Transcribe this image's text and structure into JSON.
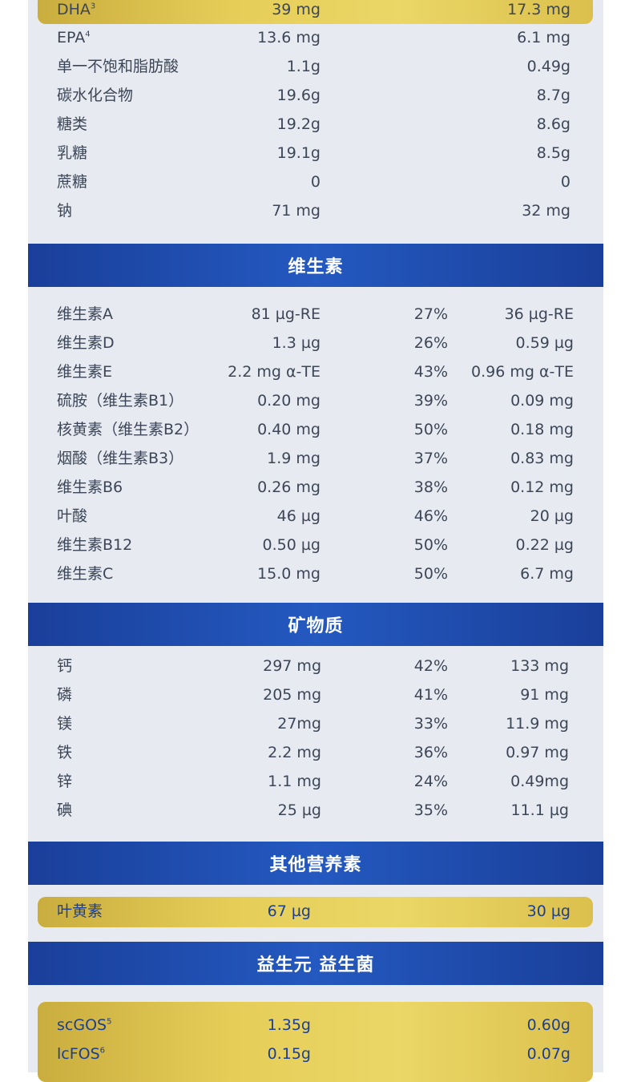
{
  "sections": {
    "vitamins": "维生素",
    "minerals": "矿物质",
    "other": "其他营养素",
    "probiotics": "益生元 益生菌"
  },
  "top_rows": [
    {
      "name": "DHA",
      "sup": "3",
      "a": "39 mg",
      "b": "17.3 mg"
    },
    {
      "name": "EPA",
      "sup": "4",
      "a": "13.6 mg",
      "b": "6.1 mg"
    },
    {
      "name": "单一不饱和脂肪酸",
      "sup": "",
      "a": "1.1g",
      "b": "0.49g"
    },
    {
      "name": "碳水化合物",
      "sup": "",
      "a": "19.6g",
      "b": "8.7g"
    },
    {
      "name": "糖类",
      "sup": "",
      "a": "19.2g",
      "b": "8.6g"
    },
    {
      "name": "乳糖",
      "sup": "",
      "a": "19.1g",
      "b": "8.5g"
    },
    {
      "name": "蔗糖",
      "sup": "",
      "a": "0",
      "b": "0"
    },
    {
      "name": "钠",
      "sup": "",
      "a": "71 mg",
      "b": "32 mg"
    }
  ],
  "vitamins": [
    {
      "name": "维生素A",
      "a": "81 µg-RE",
      "p": "27%",
      "b": "36 µg-RE"
    },
    {
      "name": "维生素D",
      "a": "1.3 µg",
      "p": "26%",
      "b": "0.59 µg"
    },
    {
      "name": "维生素E",
      "a": "2.2 mg α-TE",
      "p": "43%",
      "b": "0.96 mg α-TE"
    },
    {
      "name": "硫胺（维生素B1）",
      "a": "0.20 mg",
      "p": "39%",
      "b": "0.09 mg"
    },
    {
      "name": "核黄素（维生素B2）",
      "a": "0.40 mg",
      "p": "50%",
      "b": "0.18 mg"
    },
    {
      "name": "烟酸（维生素B3）",
      "a": "1.9 mg",
      "p": "37%",
      "b": "0.83 mg"
    },
    {
      "name": "维生素B6",
      "a": "0.26 mg",
      "p": "38%",
      "b": "0.12 mg"
    },
    {
      "name": "叶酸",
      "a": "46 µg",
      "p": "46%",
      "b": "20 µg"
    },
    {
      "name": "维生素B12",
      "a": "0.50 µg",
      "p": "50%",
      "b": "0.22 µg"
    },
    {
      "name": "维生素C",
      "a": "15.0 mg",
      "p": "50%",
      "b": "6.7 mg"
    }
  ],
  "minerals": [
    {
      "name": "钙",
      "a": "297 mg",
      "p": "42%",
      "b": "133 mg"
    },
    {
      "name": "磷",
      "a": "205 mg",
      "p": "41%",
      "b": "91 mg"
    },
    {
      "name": "镁",
      "a": "27mg",
      "p": "33%",
      "b": "11.9 mg"
    },
    {
      "name": "铁",
      "a": "2.2 mg",
      "p": "36%",
      "b": "0.97 mg"
    },
    {
      "name": "锌",
      "a": "1.1 mg",
      "p": "24%",
      "b": "0.49mg"
    },
    {
      "name": "碘",
      "a": "25 µg",
      "p": "35%",
      "b": "11.1 µg"
    }
  ],
  "other": [
    {
      "name": "叶黄素",
      "a": "67 µg",
      "b": "30 µg"
    }
  ],
  "probiotics": [
    {
      "name": "scGOS",
      "sup": "5",
      "a": "1.35g",
      "b": "0.60g"
    },
    {
      "name": "lcFOS",
      "sup": "6",
      "a": "0.15g",
      "b": "0.07g"
    }
  ]
}
